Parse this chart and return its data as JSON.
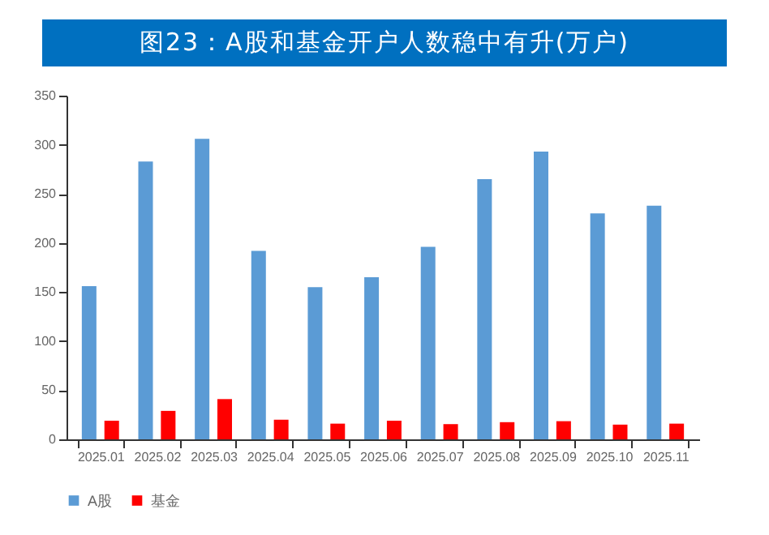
{
  "chart_data": {
    "type": "bar",
    "title": "图23：A股和基金开户人数稳中有升(万户)",
    "categories": [
      "2025.01",
      "2025.02",
      "2025.03",
      "2025.04",
      "2025.05",
      "2025.06",
      "2025.07",
      "2025.08",
      "2025.09",
      "2025.10",
      "2025.11"
    ],
    "series": [
      {
        "name": "A股",
        "color": "#5b9bd5",
        "values": [
          156,
          283,
          306,
          192,
          155,
          165,
          196,
          265,
          293,
          230,
          238
        ]
      },
      {
        "name": "基金",
        "color": "#ff0000",
        "values": [
          19,
          29,
          41,
          20,
          16,
          19,
          15.5,
          17.5,
          18.5,
          15,
          16
        ]
      }
    ],
    "ylim": [
      0,
      350
    ],
    "yticks": [
      0,
      50,
      100,
      150,
      200,
      250,
      300,
      350
    ],
    "grid": false,
    "legend": "bottom"
  }
}
